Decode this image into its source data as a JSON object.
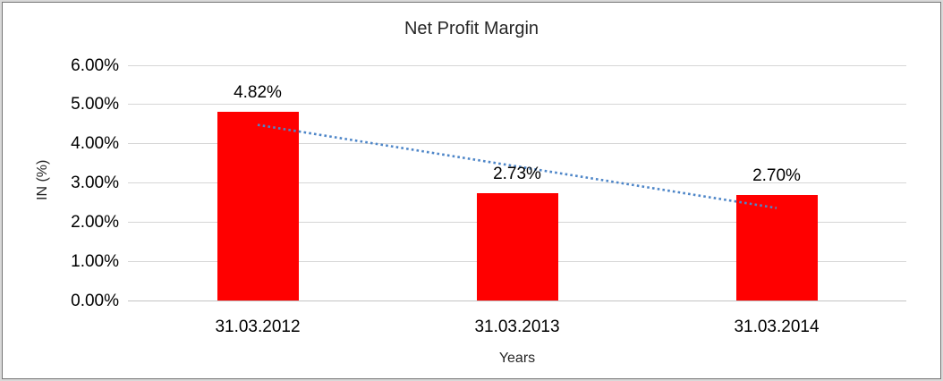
{
  "chart_data": {
    "type": "bar",
    "title": "Net Profit Margin",
    "xlabel": "Years",
    "ylabel": "IN (%)",
    "categories": [
      "31.03.2012",
      "31.03.2013",
      "31.03.2014"
    ],
    "values": [
      4.82,
      2.73,
      2.7
    ],
    "data_labels": [
      "4.82%",
      "2.73%",
      "2.70%"
    ],
    "y_ticks": [
      "0.00%",
      "1.00%",
      "2.00%",
      "3.00%",
      "4.00%",
      "5.00%",
      "6.00%"
    ],
    "ylim": [
      0,
      6
    ],
    "grid": true,
    "legend": "none",
    "bar_color": "#ff0000",
    "gridline_color": "#d6d6d6",
    "trendline": {
      "style": "dotted",
      "color": "#4e86c8",
      "start_value": 4.48,
      "end_value": 2.36
    }
  }
}
